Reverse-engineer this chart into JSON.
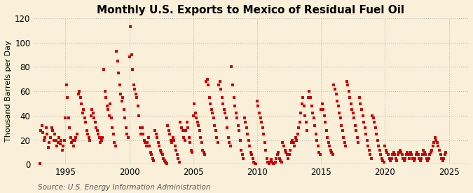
{
  "title": "Monthly U.S. Exports to Mexico of Residual Fuel Oil",
  "ylabel": "Thousand Barrels per Day",
  "source": "Source: U.S. Energy Information Administration",
  "xlim": [
    1992.5,
    2026.5
  ],
  "ylim": [
    0,
    120
  ],
  "yticks": [
    0,
    20,
    40,
    60,
    80,
    100,
    120
  ],
  "xticks": [
    1995,
    2000,
    2005,
    2010,
    2015,
    2020,
    2025
  ],
  "background_color": "#faefd8",
  "marker_color": "#cc0000",
  "grid_color": "#bbbbbb",
  "title_fontsize": 11,
  "label_fontsize": 8.5,
  "source_fontsize": 7.5,
  "marker_size": 6,
  "data": [
    [
      1993.0,
      1
    ],
    [
      1993.083,
      28
    ],
    [
      1993.167,
      32
    ],
    [
      1993.25,
      26
    ],
    [
      1993.333,
      20
    ],
    [
      1993.417,
      22
    ],
    [
      1993.5,
      30
    ],
    [
      1993.583,
      25
    ],
    [
      1993.667,
      14
    ],
    [
      1993.75,
      18
    ],
    [
      1993.833,
      22
    ],
    [
      1993.917,
      30
    ],
    [
      1994.0,
      28
    ],
    [
      1994.083,
      20
    ],
    [
      1994.167,
      25
    ],
    [
      1994.25,
      20
    ],
    [
      1994.333,
      15
    ],
    [
      1994.417,
      18
    ],
    [
      1994.5,
      22
    ],
    [
      1994.583,
      17
    ],
    [
      1994.667,
      20
    ],
    [
      1994.75,
      12
    ],
    [
      1994.833,
      15
    ],
    [
      1994.917,
      20
    ],
    [
      1995.0,
      38
    ],
    [
      1995.083,
      65
    ],
    [
      1995.167,
      55
    ],
    [
      1995.25,
      38
    ],
    [
      1995.333,
      30
    ],
    [
      1995.417,
      22
    ],
    [
      1995.5,
      18
    ],
    [
      1995.583,
      20
    ],
    [
      1995.667,
      15
    ],
    [
      1995.75,
      20
    ],
    [
      1995.833,
      22
    ],
    [
      1995.917,
      25
    ],
    [
      1996.0,
      58
    ],
    [
      1996.083,
      60
    ],
    [
      1996.167,
      55
    ],
    [
      1996.25,
      50
    ],
    [
      1996.333,
      42
    ],
    [
      1996.417,
      45
    ],
    [
      1996.5,
      38
    ],
    [
      1996.583,
      35
    ],
    [
      1996.667,
      28
    ],
    [
      1996.75,
      25
    ],
    [
      1996.833,
      22
    ],
    [
      1996.917,
      20
    ],
    [
      1997.0,
      40
    ],
    [
      1997.083,
      45
    ],
    [
      1997.167,
      42
    ],
    [
      1997.25,
      38
    ],
    [
      1997.333,
      35
    ],
    [
      1997.417,
      30
    ],
    [
      1997.5,
      28
    ],
    [
      1997.583,
      25
    ],
    [
      1997.667,
      22
    ],
    [
      1997.75,
      18
    ],
    [
      1997.833,
      20
    ],
    [
      1997.917,
      22
    ],
    [
      1998.0,
      78
    ],
    [
      1998.083,
      60
    ],
    [
      1998.167,
      55
    ],
    [
      1998.25,
      48
    ],
    [
      1998.333,
      45
    ],
    [
      1998.417,
      40
    ],
    [
      1998.5,
      50
    ],
    [
      1998.583,
      38
    ],
    [
      1998.667,
      30
    ],
    [
      1998.75,
      25
    ],
    [
      1998.833,
      18
    ],
    [
      1998.917,
      15
    ],
    [
      1999.0,
      93
    ],
    [
      1999.083,
      85
    ],
    [
      1999.167,
      75
    ],
    [
      1999.25,
      65
    ],
    [
      1999.333,
      58
    ],
    [
      1999.417,
      52
    ],
    [
      1999.5,
      55
    ],
    [
      1999.583,
      45
    ],
    [
      1999.667,
      38
    ],
    [
      1999.75,
      30
    ],
    [
      1999.833,
      25
    ],
    [
      1999.917,
      22
    ],
    [
      2000.0,
      88
    ],
    [
      2000.083,
      113
    ],
    [
      2000.167,
      90
    ],
    [
      2000.25,
      78
    ],
    [
      2000.333,
      65
    ],
    [
      2000.417,
      62
    ],
    [
      2000.5,
      58
    ],
    [
      2000.583,
      55
    ],
    [
      2000.667,
      48
    ],
    [
      2000.75,
      40
    ],
    [
      2000.833,
      30
    ],
    [
      2000.917,
      25
    ],
    [
      2001.0,
      30
    ],
    [
      2001.083,
      25
    ],
    [
      2001.167,
      20
    ],
    [
      2001.25,
      18
    ],
    [
      2001.333,
      15
    ],
    [
      2001.417,
      18
    ],
    [
      2001.5,
      22
    ],
    [
      2001.583,
      15
    ],
    [
      2001.667,
      10
    ],
    [
      2001.75,
      8
    ],
    [
      2001.833,
      5
    ],
    [
      2001.917,
      3
    ],
    [
      2002.0,
      28
    ],
    [
      2002.083,
      25
    ],
    [
      2002.167,
      22
    ],
    [
      2002.25,
      18
    ],
    [
      2002.333,
      15
    ],
    [
      2002.417,
      12
    ],
    [
      2002.5,
      10
    ],
    [
      2002.583,
      8
    ],
    [
      2002.667,
      5
    ],
    [
      2002.75,
      3
    ],
    [
      2002.833,
      2
    ],
    [
      2002.917,
      1
    ],
    [
      2003.0,
      32
    ],
    [
      2003.083,
      28
    ],
    [
      2003.167,
      25
    ],
    [
      2003.25,
      20
    ],
    [
      2003.333,
      18
    ],
    [
      2003.417,
      22
    ],
    [
      2003.5,
      20
    ],
    [
      2003.583,
      15
    ],
    [
      2003.667,
      12
    ],
    [
      2003.75,
      8
    ],
    [
      2003.833,
      5
    ],
    [
      2003.917,
      2
    ],
    [
      2004.0,
      35
    ],
    [
      2004.083,
      30
    ],
    [
      2004.167,
      28
    ],
    [
      2004.25,
      22
    ],
    [
      2004.333,
      20
    ],
    [
      2004.417,
      28
    ],
    [
      2004.5,
      35
    ],
    [
      2004.583,
      30
    ],
    [
      2004.667,
      22
    ],
    [
      2004.75,
      18
    ],
    [
      2004.833,
      12
    ],
    [
      2004.917,
      10
    ],
    [
      2005.0,
      40
    ],
    [
      2005.083,
      50
    ],
    [
      2005.167,
      42
    ],
    [
      2005.25,
      38
    ],
    [
      2005.333,
      35
    ],
    [
      2005.417,
      32
    ],
    [
      2005.5,
      28
    ],
    [
      2005.583,
      22
    ],
    [
      2005.667,
      18
    ],
    [
      2005.75,
      12
    ],
    [
      2005.833,
      10
    ],
    [
      2005.917,
      8
    ],
    [
      2006.0,
      68
    ],
    [
      2006.083,
      70
    ],
    [
      2006.167,
      65
    ],
    [
      2006.25,
      55
    ],
    [
      2006.333,
      50
    ],
    [
      2006.417,
      45
    ],
    [
      2006.5,
      42
    ],
    [
      2006.583,
      38
    ],
    [
      2006.667,
      32
    ],
    [
      2006.75,
      28
    ],
    [
      2006.833,
      22
    ],
    [
      2006.917,
      18
    ],
    [
      2007.0,
      65
    ],
    [
      2007.083,
      68
    ],
    [
      2007.167,
      62
    ],
    [
      2007.25,
      55
    ],
    [
      2007.333,
      50
    ],
    [
      2007.417,
      45
    ],
    [
      2007.5,
      42
    ],
    [
      2007.583,
      38
    ],
    [
      2007.667,
      30
    ],
    [
      2007.75,
      22
    ],
    [
      2007.833,
      18
    ],
    [
      2007.917,
      15
    ],
    [
      2008.0,
      80
    ],
    [
      2008.083,
      65
    ],
    [
      2008.167,
      55
    ],
    [
      2008.25,
      48
    ],
    [
      2008.333,
      42
    ],
    [
      2008.417,
      38
    ],
    [
      2008.5,
      32
    ],
    [
      2008.583,
      28
    ],
    [
      2008.667,
      20
    ],
    [
      2008.75,
      12
    ],
    [
      2008.833,
      8
    ],
    [
      2008.917,
      5
    ],
    [
      2009.0,
      38
    ],
    [
      2009.083,
      35
    ],
    [
      2009.167,
      30
    ],
    [
      2009.25,
      25
    ],
    [
      2009.333,
      20
    ],
    [
      2009.417,
      15
    ],
    [
      2009.5,
      10
    ],
    [
      2009.583,
      8
    ],
    [
      2009.667,
      5
    ],
    [
      2009.75,
      2
    ],
    [
      2009.833,
      1
    ],
    [
      2009.917,
      0
    ],
    [
      2010.0,
      52
    ],
    [
      2010.083,
      48
    ],
    [
      2010.167,
      42
    ],
    [
      2010.25,
      38
    ],
    [
      2010.333,
      35
    ],
    [
      2010.417,
      30
    ],
    [
      2010.5,
      25
    ],
    [
      2010.583,
      18
    ],
    [
      2010.667,
      12
    ],
    [
      2010.75,
      5
    ],
    [
      2010.833,
      2
    ],
    [
      2010.917,
      0
    ],
    [
      2011.0,
      2
    ],
    [
      2011.083,
      4
    ],
    [
      2011.167,
      2
    ],
    [
      2011.25,
      0
    ],
    [
      2011.333,
      1
    ],
    [
      2011.417,
      2
    ],
    [
      2011.5,
      5
    ],
    [
      2011.583,
      8
    ],
    [
      2011.667,
      10
    ],
    [
      2011.75,
      5
    ],
    [
      2011.833,
      3
    ],
    [
      2011.917,
      2
    ],
    [
      2012.0,
      18
    ],
    [
      2012.083,
      15
    ],
    [
      2012.167,
      12
    ],
    [
      2012.25,
      10
    ],
    [
      2012.333,
      8
    ],
    [
      2012.417,
      5
    ],
    [
      2012.5,
      8
    ],
    [
      2012.583,
      12
    ],
    [
      2012.667,
      18
    ],
    [
      2012.75,
      20
    ],
    [
      2012.833,
      18
    ],
    [
      2012.917,
      15
    ],
    [
      2013.0,
      22
    ],
    [
      2013.083,
      20
    ],
    [
      2013.167,
      25
    ],
    [
      2013.25,
      30
    ],
    [
      2013.333,
      35
    ],
    [
      2013.417,
      42
    ],
    [
      2013.5,
      50
    ],
    [
      2013.583,
      55
    ],
    [
      2013.667,
      48
    ],
    [
      2013.75,
      40
    ],
    [
      2013.833,
      35
    ],
    [
      2013.917,
      28
    ],
    [
      2014.0,
      55
    ],
    [
      2014.083,
      60
    ],
    [
      2014.167,
      55
    ],
    [
      2014.25,
      48
    ],
    [
      2014.333,
      42
    ],
    [
      2014.417,
      38
    ],
    [
      2014.5,
      32
    ],
    [
      2014.583,
      25
    ],
    [
      2014.667,
      20
    ],
    [
      2014.75,
      15
    ],
    [
      2014.833,
      10
    ],
    [
      2014.917,
      8
    ],
    [
      2015.0,
      45
    ],
    [
      2015.083,
      50
    ],
    [
      2015.167,
      45
    ],
    [
      2015.25,
      40
    ],
    [
      2015.333,
      35
    ],
    [
      2015.417,
      28
    ],
    [
      2015.5,
      22
    ],
    [
      2015.583,
      18
    ],
    [
      2015.667,
      15
    ],
    [
      2015.75,
      12
    ],
    [
      2015.833,
      10
    ],
    [
      2015.917,
      8
    ],
    [
      2016.0,
      65
    ],
    [
      2016.083,
      62
    ],
    [
      2016.167,
      58
    ],
    [
      2016.25,
      52
    ],
    [
      2016.333,
      48
    ],
    [
      2016.417,
      42
    ],
    [
      2016.5,
      38
    ],
    [
      2016.583,
      32
    ],
    [
      2016.667,
      28
    ],
    [
      2016.75,
      22
    ],
    [
      2016.833,
      18
    ],
    [
      2016.917,
      15
    ],
    [
      2017.0,
      68
    ],
    [
      2017.083,
      65
    ],
    [
      2017.167,
      60
    ],
    [
      2017.25,
      55
    ],
    [
      2017.333,
      50
    ],
    [
      2017.417,
      45
    ],
    [
      2017.5,
      42
    ],
    [
      2017.583,
      38
    ],
    [
      2017.667,
      32
    ],
    [
      2017.75,
      28
    ],
    [
      2017.833,
      22
    ],
    [
      2017.917,
      18
    ],
    [
      2018.0,
      55
    ],
    [
      2018.083,
      50
    ],
    [
      2018.167,
      45
    ],
    [
      2018.25,
      40
    ],
    [
      2018.333,
      35
    ],
    [
      2018.417,
      30
    ],
    [
      2018.5,
      25
    ],
    [
      2018.583,
      20
    ],
    [
      2018.667,
      15
    ],
    [
      2018.75,
      12
    ],
    [
      2018.833,
      8
    ],
    [
      2018.917,
      5
    ],
    [
      2019.0,
      40
    ],
    [
      2019.083,
      38
    ],
    [
      2019.167,
      35
    ],
    [
      2019.25,
      30
    ],
    [
      2019.333,
      25
    ],
    [
      2019.417,
      20
    ],
    [
      2019.5,
      15
    ],
    [
      2019.583,
      12
    ],
    [
      2019.667,
      8
    ],
    [
      2019.75,
      5
    ],
    [
      2019.833,
      3
    ],
    [
      2019.917,
      2
    ],
    [
      2020.0,
      15
    ],
    [
      2020.083,
      12
    ],
    [
      2020.167,
      10
    ],
    [
      2020.25,
      8
    ],
    [
      2020.333,
      5
    ],
    [
      2020.417,
      3
    ],
    [
      2020.5,
      5
    ],
    [
      2020.583,
      8
    ],
    [
      2020.667,
      10
    ],
    [
      2020.75,
      8
    ],
    [
      2020.833,
      5
    ],
    [
      2020.917,
      3
    ],
    [
      2021.0,
      8
    ],
    [
      2021.083,
      10
    ],
    [
      2021.167,
      12
    ],
    [
      2021.25,
      10
    ],
    [
      2021.333,
      8
    ],
    [
      2021.417,
      5
    ],
    [
      2021.5,
      3
    ],
    [
      2021.583,
      5
    ],
    [
      2021.667,
      8
    ],
    [
      2021.75,
      10
    ],
    [
      2021.833,
      8
    ],
    [
      2021.917,
      5
    ],
    [
      2022.0,
      10
    ],
    [
      2022.083,
      8
    ],
    [
      2022.167,
      5
    ],
    [
      2022.25,
      3
    ],
    [
      2022.333,
      5
    ],
    [
      2022.417,
      8
    ],
    [
      2022.5,
      10
    ],
    [
      2022.583,
      8
    ],
    [
      2022.667,
      5
    ],
    [
      2022.75,
      3
    ],
    [
      2022.833,
      5
    ],
    [
      2022.917,
      8
    ],
    [
      2023.0,
      12
    ],
    [
      2023.083,
      10
    ],
    [
      2023.167,
      8
    ],
    [
      2023.25,
      5
    ],
    [
      2023.333,
      3
    ],
    [
      2023.417,
      5
    ],
    [
      2023.5,
      8
    ],
    [
      2023.583,
      10
    ],
    [
      2023.667,
      12
    ],
    [
      2023.75,
      15
    ],
    [
      2023.833,
      18
    ],
    [
      2023.917,
      22
    ],
    [
      2024.0,
      20
    ],
    [
      2024.083,
      18
    ],
    [
      2024.167,
      15
    ],
    [
      2024.25,
      12
    ],
    [
      2024.333,
      8
    ],
    [
      2024.417,
      5
    ],
    [
      2024.5,
      3
    ],
    [
      2024.583,
      5
    ],
    [
      2024.667,
      8
    ],
    [
      2024.75,
      10
    ]
  ]
}
